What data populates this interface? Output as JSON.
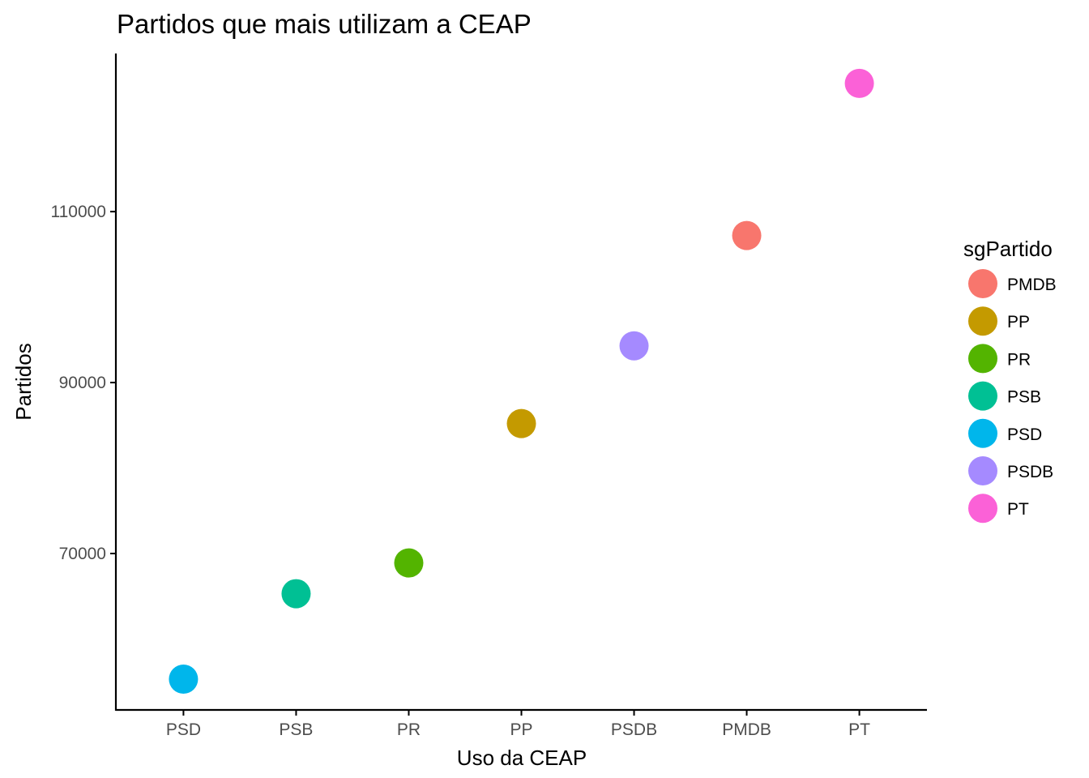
{
  "chart_data": {
    "type": "scatter",
    "title": "Partidos que mais utilizam a CEAP",
    "xlabel": "Uso da CEAP",
    "ylabel": "Partidos",
    "categories": [
      "PSD",
      "PSB",
      "PR",
      "PP",
      "PSDB",
      "PMDB",
      "PT"
    ],
    "points": [
      {
        "x": "PSD",
        "y": 55300,
        "party": "PSD"
      },
      {
        "x": "PSB",
        "y": 65300,
        "party": "PSB"
      },
      {
        "x": "PR",
        "y": 68900,
        "party": "PR"
      },
      {
        "x": "PP",
        "y": 85200,
        "party": "PP"
      },
      {
        "x": "PSDB",
        "y": 94300,
        "party": "PSDB"
      },
      {
        "x": "PMDB",
        "y": 107200,
        "party": "PMDB"
      },
      {
        "x": "PT",
        "y": 125000,
        "party": "PT"
      }
    ],
    "y_ticks": [
      70000,
      90000,
      110000
    ],
    "ylim": [
      51700,
      128500
    ],
    "grid": false,
    "legend": {
      "title": "sgPartido",
      "position": "right",
      "entries": [
        "PMDB",
        "PP",
        "PR",
        "PSB",
        "PSD",
        "PSDB",
        "PT"
      ]
    },
    "colors": {
      "PMDB": "#F8766D",
      "PP": "#C49A00",
      "PR": "#53B400",
      "PSB": "#00C094",
      "PSD": "#00B6EB",
      "PSDB": "#A58AFF",
      "PT": "#FB61D7"
    }
  }
}
